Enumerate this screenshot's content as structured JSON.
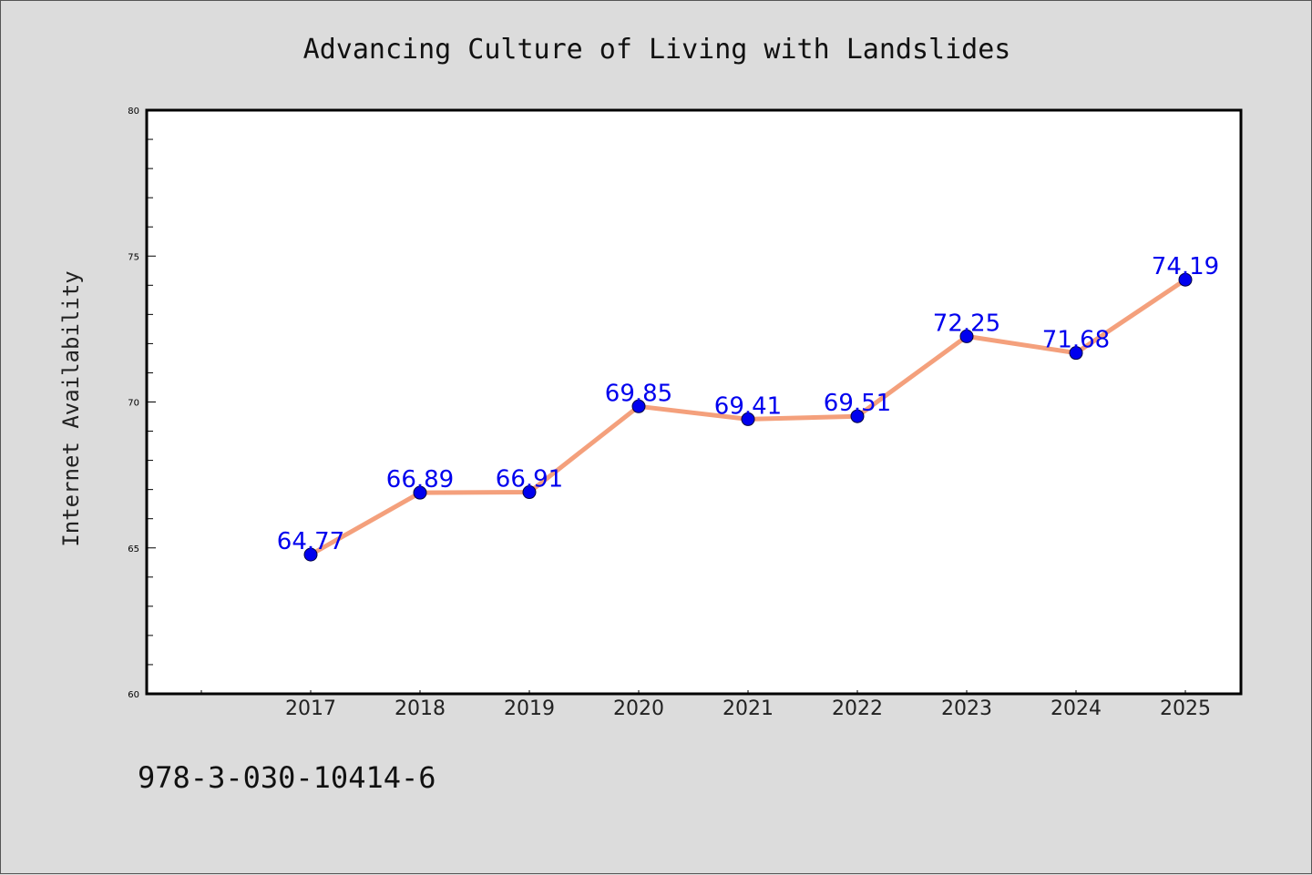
{
  "chart_data": {
    "type": "line",
    "title": "Advancing Culture of Living with Landslides",
    "xlabel": "",
    "ylabel": "Internet Availability",
    "categories": [
      "2017",
      "2018",
      "2019",
      "2020",
      "2021",
      "2022",
      "2023",
      "2024",
      "2025"
    ],
    "series": [
      {
        "values": [
          64.77,
          66.89,
          66.91,
          69.85,
          69.41,
          69.51,
          72.25,
          71.68,
          74.19
        ],
        "data_labels": [
          "64.77",
          "66.89",
          "66.91",
          "69.85",
          "69.41",
          "69.51",
          "72.25",
          "71.68",
          "74.19"
        ]
      }
    ],
    "ylim": [
      60,
      80
    ],
    "y_ticks": [
      "60",
      "65",
      "70",
      "75",
      "80"
    ],
    "grid": false,
    "legend": "none",
    "colors": {
      "line": "#f4a07c",
      "marker": "#0000ee",
      "data_label": "#0000ee",
      "plot_background": "#ffffff",
      "page_background": "#dcdcdc"
    }
  },
  "footer_text": "978-3-030-10414-6"
}
